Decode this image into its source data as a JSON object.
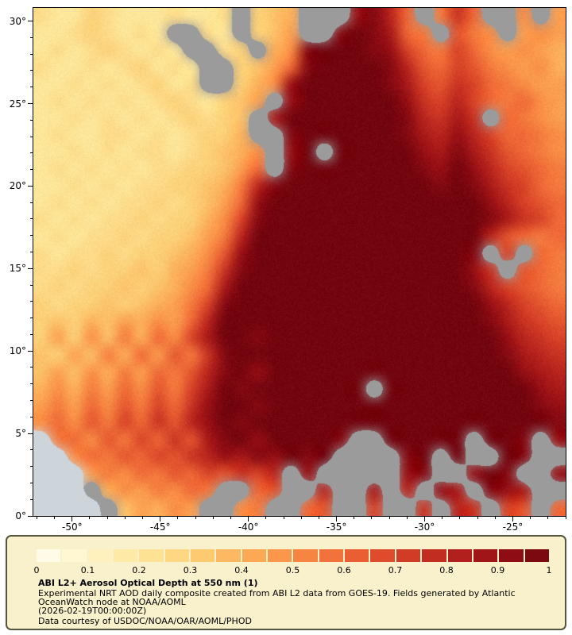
{
  "axes": {
    "lat_ticks": [
      "30°",
      "25°",
      "20°",
      "15°",
      "10°",
      "5°",
      "0°"
    ],
    "lat_tick_values": [
      30,
      25,
      20,
      15,
      10,
      5,
      0
    ],
    "lon_ticks": [
      "-50°",
      "-45°",
      "-40°",
      "-35°",
      "-30°",
      "-25°"
    ],
    "lon_tick_values": [
      -50,
      -45,
      -40,
      -35,
      -30,
      -25
    ]
  },
  "colorbar": {
    "segments": 20,
    "ticks": [
      "0",
      "0.1",
      "0.2",
      "0.3",
      "0.4",
      "0.5",
      "0.6",
      "0.7",
      "0.8",
      "0.9",
      "1"
    ]
  },
  "legend": {
    "title": "ABI L2+ Aerosol Optical Depth at 550 nm (1)",
    "description_lines": [
      "Experimental NRT AOD daily composite created from ABI L2 data from GOES-19. Fields generated by Atlantic",
      "OceanWatch node at NOAA/AOML"
    ],
    "timestamp": "(2026-02-19T00:00:00Z)",
    "courtesy": "Data courtesy of USDOC/NOAA/OAR/AOML/PHOD"
  },
  "colors": {
    "cloud_gray": "#9b9b9b",
    "land": "#cdd5da",
    "legend_bg": "#f8f1cb",
    "legend_border": "#55543f",
    "axis": "#000000",
    "page_bg": "#ffffff"
  },
  "chart_data": {
    "type": "heatmap",
    "title": "ABI L2+ Aerosol Optical Depth at 550 nm (1)",
    "variable": "aerosol_optical_depth_550nm",
    "value_range": [
      0,
      1
    ],
    "lat_range": [
      0,
      30.8
    ],
    "lon_range": [
      -52.2,
      -22.0
    ],
    "grid_rows": 30,
    "grid_cols": 32,
    "row_order": "north-to-south",
    "missing_value_code": -1,
    "land_value_code": -2,
    "colormap": [
      [
        0.0,
        "#fffdf0"
      ],
      [
        0.1,
        "#fff4c8"
      ],
      [
        0.2,
        "#fee79b"
      ],
      [
        0.3,
        "#fdd179"
      ],
      [
        0.4,
        "#fdb05a"
      ],
      [
        0.5,
        "#f98e46"
      ],
      [
        0.6,
        "#ef6937"
      ],
      [
        0.7,
        "#d84328"
      ],
      [
        0.8,
        "#ba251e"
      ],
      [
        0.9,
        "#970f14"
      ],
      [
        1.0,
        "#73050f"
      ]
    ],
    "grid": [
      [
        0.25,
        0.2,
        0.2,
        0.3,
        0.25,
        0.2,
        0.2,
        0.2,
        0.25,
        0.2,
        0.2,
        0.25,
        -1,
        0.3,
        0.35,
        0.4,
        -1,
        -1,
        -1,
        0.9,
        0.95,
        0.8,
        0.6,
        -1,
        0.55,
        0.75,
        0.6,
        -1,
        -1,
        0.5,
        -1,
        0.45
      ],
      [
        0.2,
        0.2,
        0.25,
        0.3,
        0.25,
        0.2,
        0.25,
        0.2,
        -1,
        -1,
        0.25,
        0.2,
        -1,
        0.3,
        0.35,
        0.45,
        -1,
        -1,
        0.95,
        1,
        0.95,
        0.85,
        0.6,
        0.55,
        -1,
        0.65,
        0.55,
        0.5,
        -1,
        0.45,
        0.5,
        0.45
      ],
      [
        0.2,
        0.25,
        0.2,
        0.25,
        0.3,
        0.25,
        0.2,
        0.25,
        0.2,
        -1,
        -1,
        0.25,
        0.3,
        -1,
        0.4,
        0.5,
        0.95,
        1,
        1,
        1,
        0.95,
        0.9,
        0.7,
        0.6,
        0.55,
        0.7,
        0.6,
        0.5,
        0.45,
        0.5,
        0.45,
        0.4
      ],
      [
        0.25,
        0.2,
        0.2,
        0.25,
        0.2,
        0.25,
        0.3,
        0.2,
        0.25,
        0.2,
        -1,
        -1,
        0.3,
        0.35,
        0.45,
        0.6,
        0.95,
        1,
        1,
        1,
        1,
        0.95,
        0.8,
        0.65,
        0.6,
        0.7,
        0.65,
        0.55,
        0.5,
        0.45,
        0.5,
        0.4
      ],
      [
        0.2,
        0.2,
        0.25,
        0.2,
        0.25,
        0.2,
        0.25,
        0.3,
        0.2,
        0.25,
        -1,
        -1,
        0.3,
        0.4,
        0.5,
        0.9,
        1,
        1,
        1,
        1,
        1,
        0.95,
        0.85,
        0.7,
        0.65,
        0.75,
        0.7,
        0.6,
        0.55,
        0.5,
        0.45,
        0.45
      ],
      [
        0.2,
        0.25,
        0.2,
        0.25,
        0.2,
        0.25,
        0.2,
        0.25,
        0.3,
        0.25,
        0.2,
        0.3,
        0.35,
        0.45,
        -1,
        0.9,
        1,
        1,
        1,
        1,
        1,
        1,
        0.9,
        0.75,
        0.7,
        0.8,
        0.7,
        0.6,
        0.55,
        0.6,
        0.5,
        0.45
      ],
      [
        0.2,
        0.2,
        0.25,
        0.2,
        0.25,
        0.2,
        0.25,
        0.2,
        0.25,
        0.3,
        0.25,
        0.3,
        0.35,
        -1,
        0.85,
        1,
        1,
        1,
        1,
        1,
        1,
        1,
        0.95,
        0.8,
        0.75,
        0.85,
        0.75,
        -1,
        0.6,
        0.55,
        0.5,
        0.45
      ],
      [
        0.2,
        0.25,
        0.2,
        0.2,
        0.25,
        0.25,
        0.2,
        0.25,
        0.2,
        0.25,
        0.3,
        0.3,
        0.4,
        -1,
        -1,
        0.95,
        1,
        1,
        1,
        1,
        1,
        1,
        0.95,
        0.85,
        0.8,
        0.9,
        0.8,
        0.7,
        0.6,
        0.6,
        0.55,
        0.5
      ],
      [
        0.2,
        0.2,
        0.25,
        0.2,
        0.25,
        0.2,
        0.25,
        0.25,
        0.2,
        0.25,
        0.3,
        0.35,
        0.4,
        0.5,
        -1,
        0.9,
        1,
        -1,
        1,
        1,
        1,
        1,
        1,
        0.9,
        0.85,
        0.95,
        0.85,
        0.75,
        0.65,
        0.6,
        0.55,
        0.5
      ],
      [
        0.2,
        0.25,
        0.2,
        0.25,
        0.2,
        0.25,
        0.2,
        0.25,
        0.25,
        0.3,
        0.3,
        0.35,
        0.45,
        0.6,
        -1,
        0.95,
        1,
        1,
        1,
        1,
        1,
        1,
        1,
        0.95,
        0.9,
        1,
        0.9,
        0.8,
        0.7,
        0.65,
        0.6,
        0.55
      ],
      [
        0.2,
        0.2,
        0.25,
        0.2,
        0.25,
        0.2,
        0.25,
        0.25,
        0.3,
        0.3,
        0.35,
        0.4,
        0.55,
        0.8,
        0.95,
        1,
        1,
        1,
        1,
        1,
        1,
        1,
        1,
        1,
        0.95,
        1,
        0.95,
        0.85,
        0.75,
        0.7,
        0.6,
        0.55
      ],
      [
        0.2,
        0.25,
        0.2,
        0.25,
        0.2,
        0.25,
        0.25,
        0.3,
        0.25,
        0.3,
        0.35,
        0.45,
        0.6,
        0.9,
        1,
        1,
        1,
        1,
        1,
        1,
        1,
        1,
        1,
        1,
        1,
        1,
        1,
        0.9,
        0.8,
        0.7,
        0.65,
        0.6
      ],
      [
        0.25,
        0.2,
        0.25,
        0.2,
        0.25,
        0.25,
        0.3,
        0.25,
        0.3,
        0.3,
        0.4,
        0.5,
        0.7,
        0.95,
        1,
        1,
        1,
        1,
        1,
        1,
        1,
        1,
        1,
        1,
        1,
        1,
        1,
        0.95,
        0.85,
        0.75,
        0.7,
        0.6
      ],
      [
        0.2,
        0.25,
        0.2,
        0.25,
        0.25,
        0.3,
        0.25,
        0.3,
        0.3,
        0.35,
        0.45,
        0.55,
        0.8,
        1,
        1,
        1,
        1,
        1,
        1,
        1,
        1,
        1,
        1,
        1,
        1,
        1,
        1,
        0.8,
        0.65,
        0.6,
        0.55,
        0.6
      ],
      [
        0.25,
        0.2,
        0.25,
        0.25,
        0.3,
        0.25,
        0.3,
        0.3,
        0.35,
        0.4,
        0.5,
        0.65,
        0.9,
        1,
        1,
        1,
        1,
        1,
        1,
        1,
        1,
        1,
        1,
        1,
        1,
        1,
        0.95,
        -1,
        0.7,
        -1,
        0.6,
        0.55
      ],
      [
        0.25,
        0.25,
        0.3,
        0.25,
        0.3,
        0.3,
        0.35,
        0.3,
        0.4,
        0.45,
        0.55,
        0.75,
        0.95,
        1,
        1,
        1,
        1,
        1,
        1,
        1,
        1,
        1,
        1,
        1,
        1,
        1,
        0.9,
        0.75,
        -1,
        0.65,
        0.6,
        0.55
      ],
      [
        0.25,
        0.3,
        0.25,
        0.3,
        0.3,
        0.35,
        0.3,
        0.35,
        0.4,
        0.5,
        0.6,
        0.85,
        1,
        1,
        1,
        1,
        1,
        1,
        1,
        1,
        1,
        1,
        1,
        1,
        1,
        1,
        0.95,
        0.8,
        0.7,
        0.65,
        0.6,
        0.55
      ],
      [
        0.3,
        0.25,
        0.3,
        0.3,
        0.35,
        0.3,
        0.35,
        0.4,
        0.45,
        0.55,
        0.7,
        0.95,
        1,
        1,
        1,
        1,
        1,
        1,
        1,
        1,
        1,
        1,
        1,
        1,
        1,
        1,
        1,
        0.9,
        0.8,
        0.7,
        0.65,
        0.6
      ],
      [
        0.3,
        0.35,
        0.3,
        0.4,
        0.35,
        0.45,
        0.4,
        0.5,
        0.45,
        0.6,
        0.8,
        1,
        1,
        1,
        1,
        1,
        1,
        1,
        1,
        1,
        1,
        1,
        1,
        1,
        1,
        1,
        1,
        0.95,
        0.85,
        0.75,
        0.7,
        0.65
      ],
      [
        0.3,
        0.45,
        0.3,
        0.5,
        0.35,
        0.55,
        0.4,
        0.6,
        0.5,
        0.7,
        0.85,
        1,
        1,
        0.95,
        1,
        1,
        1,
        1,
        1,
        1,
        1,
        1,
        1,
        1,
        1,
        1,
        1,
        1,
        0.9,
        0.8,
        0.75,
        0.7
      ],
      [
        0.35,
        0.3,
        0.45,
        0.35,
        0.55,
        0.4,
        0.6,
        0.45,
        0.65,
        0.55,
        0.75,
        0.95,
        1,
        1,
        1,
        1,
        1,
        1,
        1,
        1,
        1,
        1,
        1,
        1,
        1,
        1,
        1,
        1,
        0.95,
        0.85,
        0.8,
        0.75
      ],
      [
        0.35,
        0.45,
        0.35,
        0.5,
        0.4,
        0.55,
        0.45,
        0.6,
        0.55,
        0.65,
        0.8,
        0.95,
        1,
        0.9,
        1,
        1,
        1,
        1,
        1,
        1,
        1,
        1,
        1,
        1,
        1,
        1,
        1,
        1,
        1,
        0.9,
        0.85,
        0.8
      ],
      [
        0.4,
        0.5,
        0.4,
        0.55,
        0.45,
        0.6,
        0.5,
        0.65,
        0.55,
        0.7,
        0.85,
        1,
        0.95,
        1,
        1,
        1,
        1,
        1,
        1,
        1,
        -1,
        1,
        1,
        1,
        1,
        1,
        1,
        1,
        1,
        1,
        0.9,
        0.85
      ],
      [
        0.45,
        0.55,
        0.45,
        0.6,
        0.5,
        0.65,
        0.55,
        0.7,
        0.6,
        0.75,
        0.9,
        1,
        1,
        0.95,
        1,
        1,
        1,
        1,
        1,
        1,
        1,
        1,
        1,
        1,
        1,
        1,
        1,
        1,
        1,
        1,
        0.95,
        0.9
      ],
      [
        0.5,
        0.6,
        0.5,
        0.65,
        0.55,
        0.7,
        0.6,
        0.75,
        0.65,
        0.8,
        0.9,
        1,
        0.95,
        1,
        1,
        1,
        1,
        1,
        1,
        1,
        1,
        1,
        1,
        1,
        1,
        1,
        1,
        1,
        1,
        1,
        1,
        0.95
      ],
      [
        -2,
        0.55,
        0.6,
        0.5,
        0.65,
        0.55,
        0.7,
        0.6,
        0.75,
        0.65,
        0.85,
        0.95,
        1,
        0.9,
        1,
        1,
        1,
        1,
        0.95,
        -1,
        -1,
        1,
        1,
        1,
        1,
        1,
        -1,
        1,
        1,
        0.95,
        -1,
        0.9
      ],
      [
        -2,
        -2,
        0.5,
        0.6,
        0.55,
        0.65,
        0.6,
        0.7,
        0.65,
        0.75,
        0.8,
        0.9,
        0.85,
        0.95,
        0.9,
        1,
        0.95,
        1,
        -1,
        -1,
        -1,
        -1,
        0.95,
        1,
        -1,
        1,
        -1,
        -1,
        1,
        0.95,
        -1,
        -1
      ],
      [
        -2,
        -2,
        -2,
        0.45,
        0.55,
        0.5,
        0.6,
        0.55,
        0.65,
        0.6,
        0.7,
        0.65,
        0.75,
        0.7,
        0.8,
        -1,
        0.9,
        -1,
        -1,
        -1,
        -1,
        -1,
        0.9,
        0.95,
        -1,
        -1,
        0.9,
        1,
        0.95,
        -1,
        -1,
        0.9
      ],
      [
        -2,
        -2,
        -2,
        -1,
        0.4,
        0.5,
        0.45,
        0.55,
        0.5,
        0.6,
        0.55,
        -1,
        -1,
        0.6,
        0.65,
        -1,
        -1,
        0.8,
        -1,
        -1,
        0.85,
        -1,
        0.8,
        -1,
        0.9,
        0.85,
        -1,
        0.95,
        0.9,
        0.85,
        -1,
        -1
      ],
      [
        -2,
        -2,
        -2,
        -2,
        -1,
        0.35,
        0.45,
        0.4,
        0.5,
        0.45,
        -1,
        -1,
        0.5,
        0.55,
        -1,
        -1,
        0.6,
        0.65,
        -1,
        -1,
        0.7,
        -1,
        -1,
        0.75,
        -1,
        0.8,
        0.75,
        -1,
        0.7,
        0.65,
        -1,
        0.6
      ]
    ]
  }
}
